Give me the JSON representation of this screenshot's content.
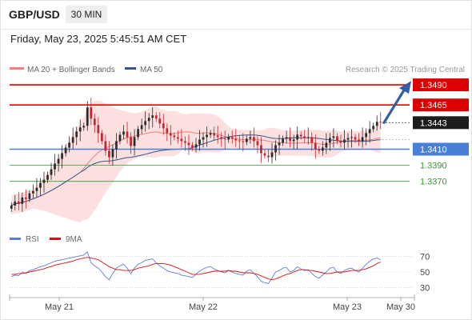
{
  "header": {
    "symbol": "GBP/USD",
    "interval": "30 MIN",
    "datetime": "Friday, May 23, 2025 5:45:51 AM CET"
  },
  "colors": {
    "resistance": "#dd0000",
    "support_primary": "#4a7fd6",
    "support_secondary": "#2e9a2e",
    "ma20": "#f08080",
    "ma50": "#34568b",
    "bollinger_fill": "#fbdada",
    "candle_up": "#2b2b2b",
    "candle_down": "#c8222b",
    "rsi": "#5a7fd8",
    "rsi_ma": "#dd1111",
    "arrow": "#2f5fa6",
    "current_price_bg": "#1c1c1c"
  },
  "chart_data": [
    {
      "type": "candlestick",
      "legend": [
        {
          "label": "MA 20 + Bollinger Bands",
          "color": "#f08080"
        },
        {
          "label": "MA 50",
          "color": "#34568b"
        }
      ],
      "credit": "Research © 2025 Trading Central",
      "y_range": [
        1.3312,
        1.3504
      ],
      "levels": [
        {
          "value": 1.349,
          "label": "1.3490",
          "kind": "resistance"
        },
        {
          "value": 1.3465,
          "label": "1.3465",
          "kind": "resistance"
        },
        {
          "value": 1.3443,
          "label": "1.3443",
          "kind": "current"
        },
        {
          "value": 1.341,
          "label": "1.3410",
          "kind": "pivot"
        },
        {
          "value": 1.339,
          "label": "1.3390",
          "kind": "support"
        },
        {
          "value": 1.337,
          "label": "1.3370",
          "kind": "support"
        }
      ],
      "x_labels": [
        "May 21",
        "May 22",
        "May 23",
        "May 30"
      ],
      "closes": [
        1.334,
        1.3345,
        1.3342,
        1.335,
        1.3348,
        1.3355,
        1.3358,
        1.3362,
        1.3368,
        1.3372,
        1.3378,
        1.3385,
        1.3392,
        1.3398,
        1.3405,
        1.3412,
        1.3418,
        1.3425,
        1.3432,
        1.3437,
        1.3439,
        1.3462,
        1.3448,
        1.344,
        1.343,
        1.342,
        1.3408,
        1.34,
        1.341,
        1.342,
        1.3428,
        1.3432,
        1.3425,
        1.3414,
        1.3425,
        1.3435,
        1.344,
        1.3445,
        1.3449,
        1.3452,
        1.3448,
        1.3442,
        1.3436,
        1.343,
        1.3427,
        1.3425,
        1.3423,
        1.342,
        1.3418,
        1.3415,
        1.3412,
        1.3416,
        1.3422,
        1.3425,
        1.3428,
        1.343,
        1.3427,
        1.3425,
        1.3423,
        1.3422,
        1.3425,
        1.3423,
        1.3421,
        1.342,
        1.3419,
        1.3423,
        1.3425,
        1.342,
        1.3415,
        1.3405,
        1.3402,
        1.34,
        1.3406,
        1.3415,
        1.3418,
        1.3423,
        1.3425,
        1.342,
        1.3422,
        1.3428,
        1.3426,
        1.3424,
        1.3425,
        1.3418,
        1.341,
        1.3408,
        1.3412,
        1.3418,
        1.3424,
        1.3426,
        1.342,
        1.3418,
        1.3422,
        1.3424,
        1.3425,
        1.3422,
        1.342,
        1.3425,
        1.343,
        1.3435,
        1.3439,
        1.3444,
        1.3443
      ]
    },
    {
      "type": "line",
      "legend": [
        {
          "label": "RSI",
          "color": "#5a7fd8"
        },
        {
          "label": "9MA",
          "color": "#dd1111"
        }
      ],
      "y_range": [
        22,
        78
      ],
      "y_ticks": [
        70,
        50,
        30
      ],
      "rsi_values": [
        44,
        46,
        45,
        50,
        48,
        52,
        53,
        55,
        57,
        58,
        60,
        62,
        64,
        65,
        66,
        67,
        68,
        69,
        70,
        71,
        72,
        76,
        62,
        58,
        55,
        50,
        44,
        40,
        48,
        55,
        58,
        60,
        55,
        48,
        55,
        60,
        62,
        65,
        66,
        67,
        62,
        58,
        55,
        52,
        50,
        49,
        48,
        46,
        45,
        44,
        43,
        47,
        51,
        54,
        56,
        57,
        54,
        52,
        50,
        49,
        52,
        50,
        48,
        47,
        46,
        51,
        53,
        48,
        44,
        38,
        36,
        35,
        42,
        50,
        52,
        55,
        56,
        50,
        52,
        57,
        54,
        52,
        53,
        48,
        44,
        42,
        46,
        50,
        55,
        56,
        50,
        48,
        52,
        54,
        55,
        52,
        50,
        55,
        60,
        64,
        67,
        68,
        66
      ],
      "rsi_ma_values": [
        47,
        47,
        48,
        48,
        49,
        50,
        51,
        52,
        53,
        54,
        56,
        57,
        59,
        60,
        61,
        62,
        63,
        64,
        66,
        67,
        68,
        69,
        68,
        67,
        66,
        63,
        60,
        57,
        55,
        53,
        53,
        52,
        52,
        52,
        53,
        55,
        56,
        57,
        58,
        60,
        61,
        61,
        61,
        60,
        59,
        57,
        55,
        53,
        51,
        49,
        47,
        47,
        47,
        48,
        49,
        50,
        51,
        51,
        51,
        51,
        52,
        51,
        51,
        50,
        49,
        49,
        49,
        48,
        47,
        45,
        43,
        41,
        40,
        41,
        43,
        45,
        47,
        48,
        50,
        52,
        53,
        53,
        52,
        52,
        51,
        50,
        49,
        48,
        48,
        49,
        50,
        50,
        50,
        51,
        52,
        52,
        52,
        53,
        54,
        56,
        58,
        61,
        63
      ]
    }
  ]
}
